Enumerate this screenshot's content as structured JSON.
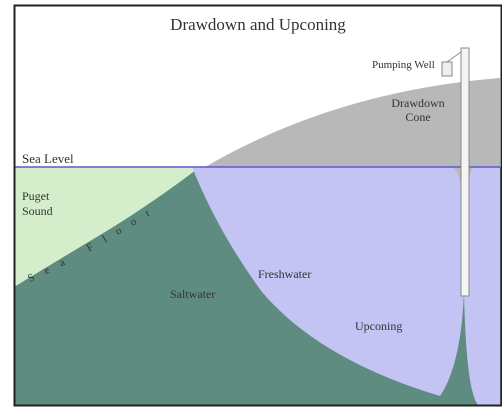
{
  "title": "Drawdown and Upconing",
  "labels": {
    "pumping_well": "Pumping Well",
    "drawdown_cone": [
      "Drawdown",
      "Cone"
    ],
    "sea_level": "Sea Level",
    "puget_sound": [
      "Puget",
      "Sound"
    ],
    "sea_floor": "Sea Floor",
    "saltwater": "Saltwater",
    "freshwater": "Freshwater",
    "upconing": "Upconing"
  }
}
